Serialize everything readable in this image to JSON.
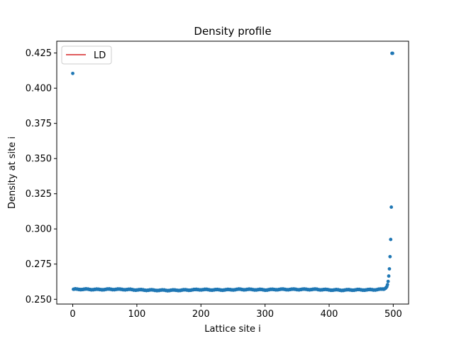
{
  "chart_data": {
    "type": "scatter",
    "title": "Density profile",
    "xlabel": "Lattice site i",
    "ylabel": "Density at site i",
    "xlim": [
      -24.95,
      523.95
    ],
    "ylim": [
      0.2466,
      0.4334
    ],
    "xticks": [
      0,
      100,
      200,
      300,
      400,
      500
    ],
    "yticks": [
      0.25,
      0.275,
      0.3,
      0.325,
      0.35,
      0.375,
      0.4,
      0.425
    ],
    "xtick_labels": [
      "0",
      "100",
      "200",
      "300",
      "400",
      "500"
    ],
    "ytick_labels": [
      "0.250",
      "0.275",
      "0.300",
      "0.325",
      "0.350",
      "0.375",
      "0.400",
      "0.425"
    ],
    "legend": {
      "position": "top-left",
      "entries": [
        {
          "label": "LD",
          "color": "#d62728",
          "marker": "line"
        }
      ]
    },
    "series": [
      {
        "color": "#1f77b4",
        "marker": "point",
        "profile": {
          "first_site": 0,
          "last_site": 499,
          "x": [
            0,
            1,
            20,
            40,
            60,
            80,
            100,
            120,
            140,
            160,
            180,
            200,
            220,
            240,
            260,
            280,
            300,
            320,
            340,
            360,
            380,
            400,
            420,
            440,
            460,
            470,
            480,
            485,
            488,
            490,
            491,
            492,
            493,
            494,
            495,
            496,
            497,
            498,
            499
          ],
          "y": [
            0.4105,
            0.2571,
            0.2571,
            0.2569,
            0.2571,
            0.257,
            0.2567,
            0.2565,
            0.2564,
            0.2564,
            0.2566,
            0.2569,
            0.2567,
            0.2567,
            0.257,
            0.2569,
            0.2567,
            0.257,
            0.257,
            0.257,
            0.257,
            0.2567,
            0.2565,
            0.2567,
            0.2567,
            0.2568,
            0.257,
            0.2573,
            0.2578,
            0.259,
            0.2604,
            0.2627,
            0.2665,
            0.2716,
            0.2803,
            0.2925,
            0.3155,
            0.4248,
            0.4248
          ]
        },
        "note_points": "site 498 at 0.4248, site 497 at 0.3155"
      }
    ],
    "grid": false
  }
}
